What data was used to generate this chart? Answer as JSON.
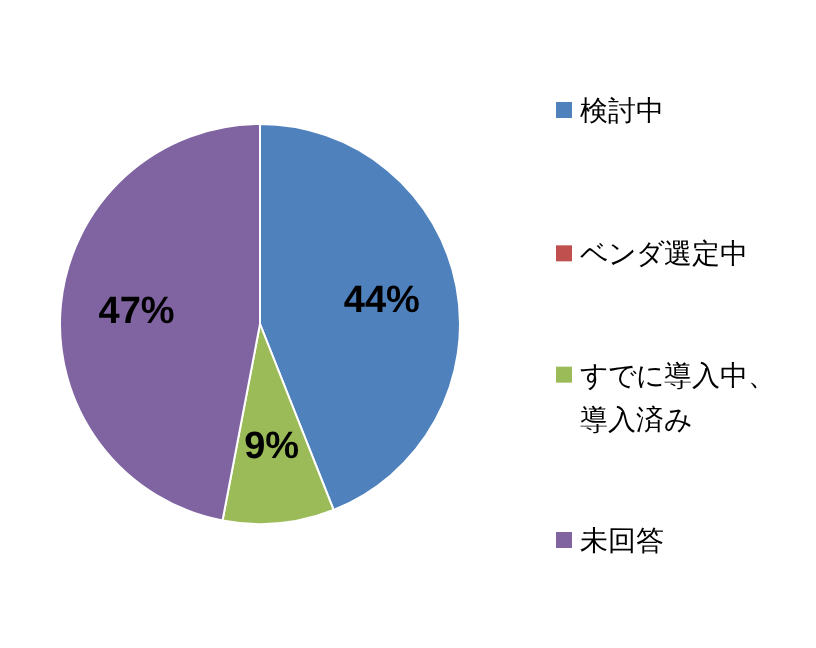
{
  "chart_data": {
    "type": "pie",
    "categories": [
      "検討中",
      "ベンダ選定中",
      "すでに導入中、導入済み",
      "未回答"
    ],
    "values": [
      44,
      0,
      9,
      47
    ],
    "colors": [
      "#4f81bd",
      "#c0504d",
      "#9bbb59",
      "#8064a2"
    ],
    "value_labels": [
      "44%",
      null,
      "9%",
      "47%"
    ],
    "legend": "right"
  }
}
